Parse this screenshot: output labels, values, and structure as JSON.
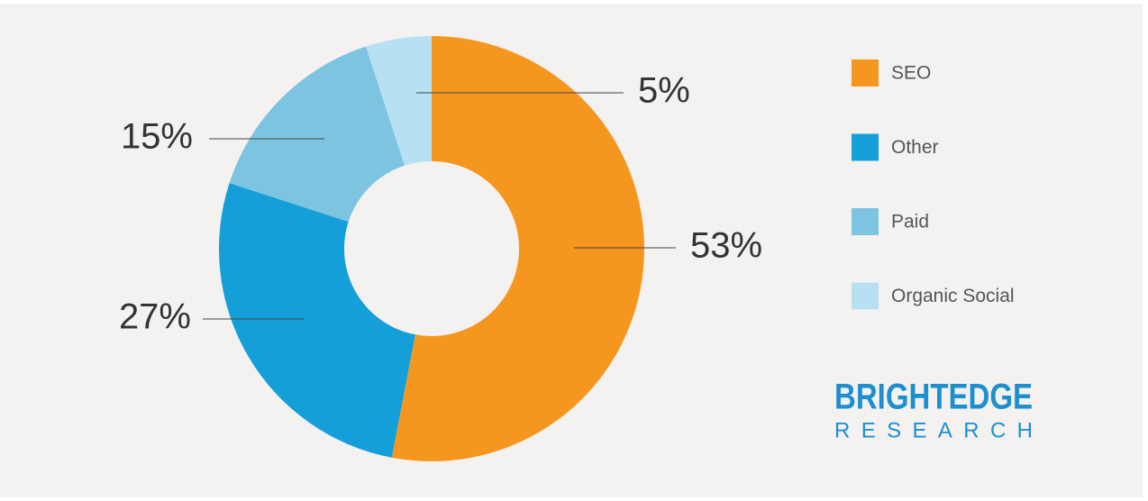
{
  "chart_data": {
    "type": "pie",
    "categories": [
      "SEO",
      "Other",
      "Paid",
      "Organic Social"
    ],
    "values": [
      53,
      27,
      15,
      5
    ],
    "value_labels": [
      "53%",
      "27%",
      "15%",
      "5%"
    ],
    "colors": [
      "#f5961f",
      "#149fd8",
      "#7dc4e0",
      "#b8e0f3"
    ],
    "donut": true,
    "legend": "right",
    "logo": {
      "name": "BRIGHTEDGE",
      "subtitle": "RESEARCH"
    }
  }
}
